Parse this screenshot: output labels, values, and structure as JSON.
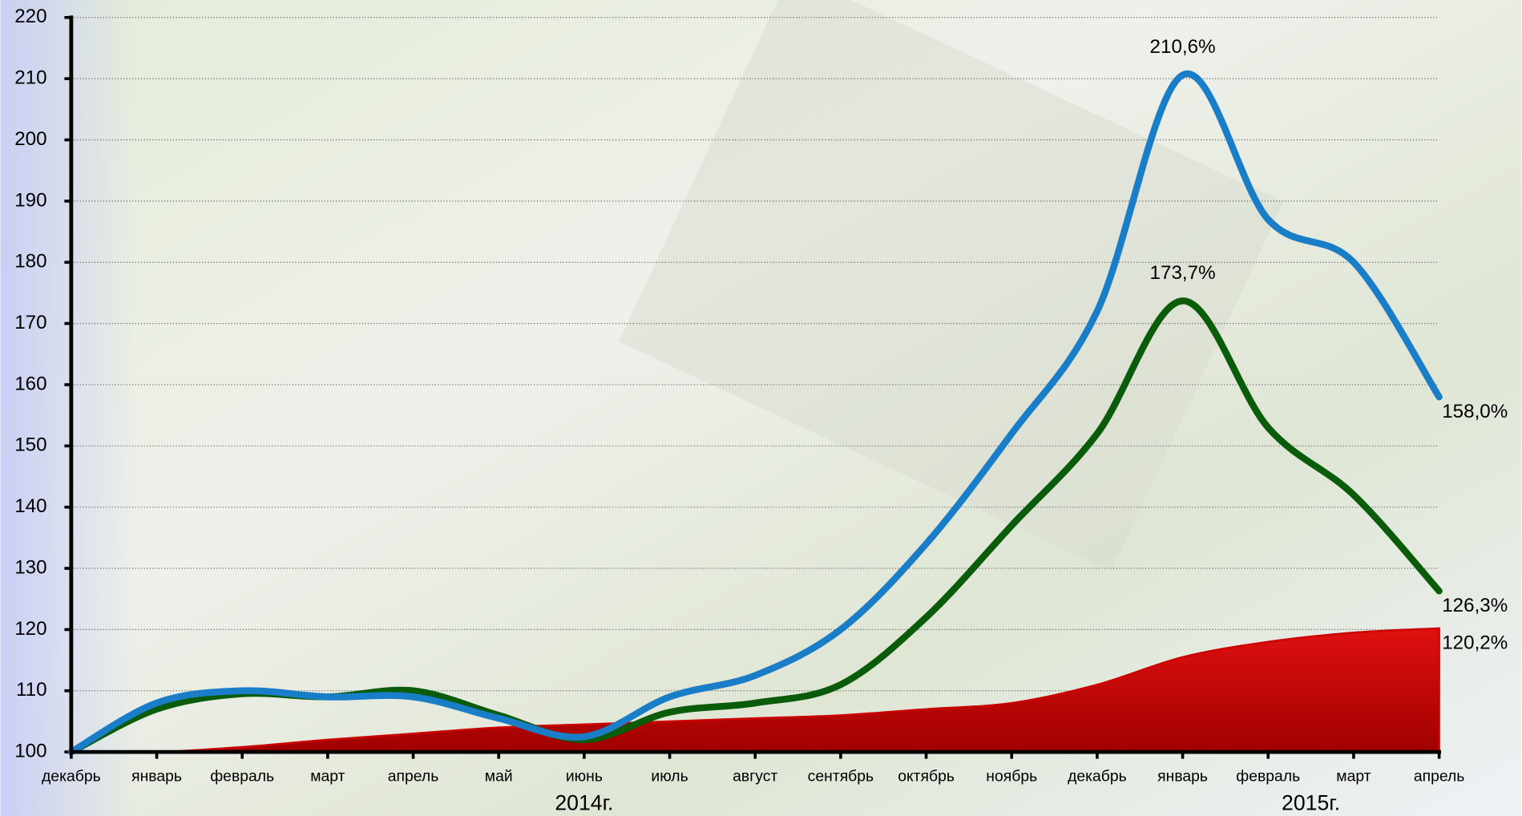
{
  "chart_data": {
    "type": "line",
    "categories": [
      "декабрь",
      "январь",
      "февраль",
      "март",
      "апрель",
      "май",
      "июнь",
      "июль",
      "август",
      "сентябрь",
      "октябрь",
      "ноябрь",
      "декабрь",
      "январь",
      "февраль",
      "март",
      "апрель"
    ],
    "annotations": [
      "2014г.",
      "2015г."
    ],
    "series": [
      {
        "color": "#cc0000",
        "area": true,
        "values": [
          100,
          100,
          100.8,
          102,
          103,
          104,
          104.5,
          105,
          105.5,
          106,
          107,
          108,
          111,
          115.5,
          118,
          119.5,
          120.2
        ],
        "value_labels": [
          null,
          null,
          null,
          null,
          null,
          null,
          null,
          null,
          null,
          null,
          null,
          null,
          null,
          null,
          null,
          null,
          "120,2%"
        ]
      },
      {
        "color": "#0a5c0a",
        "values": [
          100,
          107,
          109.5,
          109,
          110,
          106,
          102,
          106.5,
          108,
          111,
          122,
          137,
          152,
          173.7,
          153,
          142,
          126.3
        ],
        "value_labels": [
          null,
          null,
          null,
          null,
          null,
          null,
          null,
          null,
          null,
          null,
          null,
          null,
          null,
          "173,7%",
          null,
          null,
          "126,3%"
        ]
      },
      {
        "color": "#1a7dc8",
        "values": [
          100,
          108,
          110,
          109,
          109,
          105.5,
          102.5,
          109,
          112.5,
          120,
          134,
          152,
          172,
          210.6,
          187,
          180,
          158.0
        ],
        "value_labels": [
          null,
          null,
          null,
          null,
          null,
          null,
          null,
          null,
          null,
          null,
          null,
          null,
          null,
          "210,6%",
          null,
          null,
          "158,0%"
        ]
      }
    ],
    "ylim": [
      100,
      220
    ],
    "yticks": [
      100,
      110,
      120,
      130,
      140,
      150,
      160,
      170,
      180,
      190,
      200,
      210,
      220
    ],
    "grid": true
  }
}
